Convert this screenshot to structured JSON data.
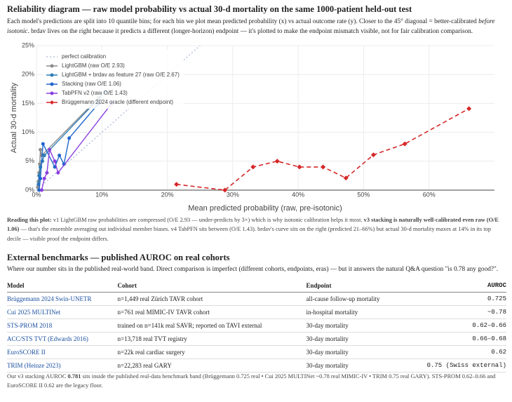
{
  "header": {
    "title": "Reliability diagram — raw model probability vs actual 30-d mortality on the same 1000-patient held-out test",
    "intro": [
      "Each model's predictions are split into 10 quantile bins; for each bin we plot mean predicted probability (x) vs actual outcome rate (y). Closer to the 45° diagonal = better-calibrated ",
      "before isotonic",
      ". brdav lives on the right because it predicts a different (longer-horizon) endpoint — it's plotted to make the endpoint mismatch visible, not for fair calibration comparison."
    ]
  },
  "chart_data": {
    "type": "line",
    "xlabel": "Mean predicted probability (raw, pre-isotonic)",
    "ylabel": "Actual 30-d mortality",
    "xlim": [
      0,
      70
    ],
    "ylim": [
      0,
      25
    ],
    "grid": true,
    "legend": "upper left",
    "xticks": [
      {
        "value": 0,
        "label": "0%"
      },
      {
        "value": 10,
        "label": "10%"
      },
      {
        "value": 20,
        "label": "20%"
      },
      {
        "value": 30,
        "label": "30%"
      },
      {
        "value": 40,
        "label": "40%"
      },
      {
        "value": 50,
        "label": "50%"
      },
      {
        "value": 60,
        "label": "60%"
      }
    ],
    "yticks": [
      {
        "value": 0,
        "label": "0%"
      },
      {
        "value": 5,
        "label": "5%"
      },
      {
        "value": 10,
        "label": "10%"
      },
      {
        "value": 15,
        "label": "15%"
      },
      {
        "value": 20,
        "label": "20%"
      },
      {
        "value": 25,
        "label": "25%"
      }
    ],
    "series": [
      {
        "name": "perfect calibration",
        "color": "#b9c6dd",
        "dash": "dot",
        "x": [
          0,
          25
        ],
        "values": [
          0,
          25
        ]
      },
      {
        "name": "LightGBM (raw O/E 2.93)",
        "color": "#8c8c8c",
        "x": [
          0.2,
          0.3,
          0.4,
          0.5,
          0.6,
          0.8,
          9.5
        ],
        "values": [
          0.5,
          1.5,
          3,
          4.5,
          7,
          6,
          16
        ]
      },
      {
        "name": "LightGBM + brdav as feature 27 (raw O/E 2.67)",
        "color": "#2c7bb6",
        "x": [
          0.3,
          0.4,
          0.6,
          0.9,
          1.2,
          10.5
        ],
        "values": [
          1,
          2.5,
          4,
          5,
          6,
          17
        ]
      },
      {
        "name": "Stacking (raw O/E 1.06)",
        "color": "#1f66cc",
        "x": [
          0.4,
          0.6,
          1.0,
          2.8,
          3.5,
          4.2,
          5.0,
          9.5
        ],
        "values": [
          0,
          2,
          8,
          4,
          6,
          4.5,
          9,
          15
        ]
      },
      {
        "name": "TabPFN v2 (raw O/E 1.43)",
        "color": "#8a3fe0",
        "x": [
          0.8,
          1.2,
          1.6,
          2.0,
          2.8,
          3.3,
          11.5
        ],
        "values": [
          0,
          2,
          3,
          7,
          5,
          3,
          15
        ]
      },
      {
        "name": "Brüggemann 2024 oracle (different endpoint)",
        "color": "#d62728",
        "dash": "dash",
        "marker": "diamond",
        "x": [
          21.4,
          28.8,
          33.1,
          36.8,
          40.2,
          43.8,
          47.3,
          51.5,
          56.3,
          66.1
        ],
        "values": [
          1,
          0,
          4,
          5,
          4,
          4,
          2.1,
          6.1,
          8,
          14.1
        ]
      }
    ]
  },
  "reading": [
    "Reading this plot:",
    " v1 LightGBM raw probabilities are compressed (O/E 2.93 — under-predicts by 3×) which is why isotonic calibration helps it most. ",
    "v3 stacking is naturally well-calibrated even raw (O/E 1.06)",
    " — that's the ensemble averaging out individual member biases. v4 TabPFN sits between (O/E 1.43). brdav's curve sits on the right (predicted 21–66%) but actual 30-d mortality maxes at 14% in its top decile — visible proof the endpoint differs."
  ],
  "benchmarks": {
    "title": "External benchmarks — published AUROC on real cohorts",
    "intro": "Where our number sits in the published real-world band. Direct comparison is imperfect (different cohorts, endpoints, eras) — but it answers the natural Q&A question \"is 0.78 any good?\".",
    "table": {
      "columns": [
        "Model",
        "Cohort",
        "Endpoint",
        "AUROC"
      ],
      "rows": [
        [
          "Brüggemann 2024 Swin-UNETR",
          "n=1,449 real Zürich TAVR cohort",
          "all-cause follow-up mortality",
          "0.725"
        ],
        [
          "Cui 2025 MULTINet",
          "n=761 real MIMIC-IV TAVR cohort",
          "in-hospital mortality",
          "~0.78"
        ],
        [
          "STS-PROM 2018",
          "trained on n=141k real SAVR; reported on TAVI external",
          "30-day mortality",
          "0.62–0.66"
        ],
        [
          "ACC/STS TVT (Edwards 2016)",
          "n=13,718 real TVT registry",
          "30-day mortality",
          "0.66–0.68"
        ],
        [
          "EuroSCORE II",
          "n=22k real cardiac surgery",
          "30-day mortality",
          "0.62"
        ],
        [
          "TRIM (Heinze 2023)",
          "n=22,283 real GARY",
          "30-day mortality",
          "0.75 (Swiss external)"
        ]
      ]
    }
  },
  "footer": [
    "Our v3 stacking AUROC ",
    "0.781",
    " sits inside the published real-data benchmark band (Brüggemann 0.725 real • Cui 2025 MULTINet ~0.78 real MIMIC-IV • TRIM 0.75 real GARY). STS-PROM 0.62–0.66 and EuroSCORE II 0.62 are the legacy floor."
  ]
}
